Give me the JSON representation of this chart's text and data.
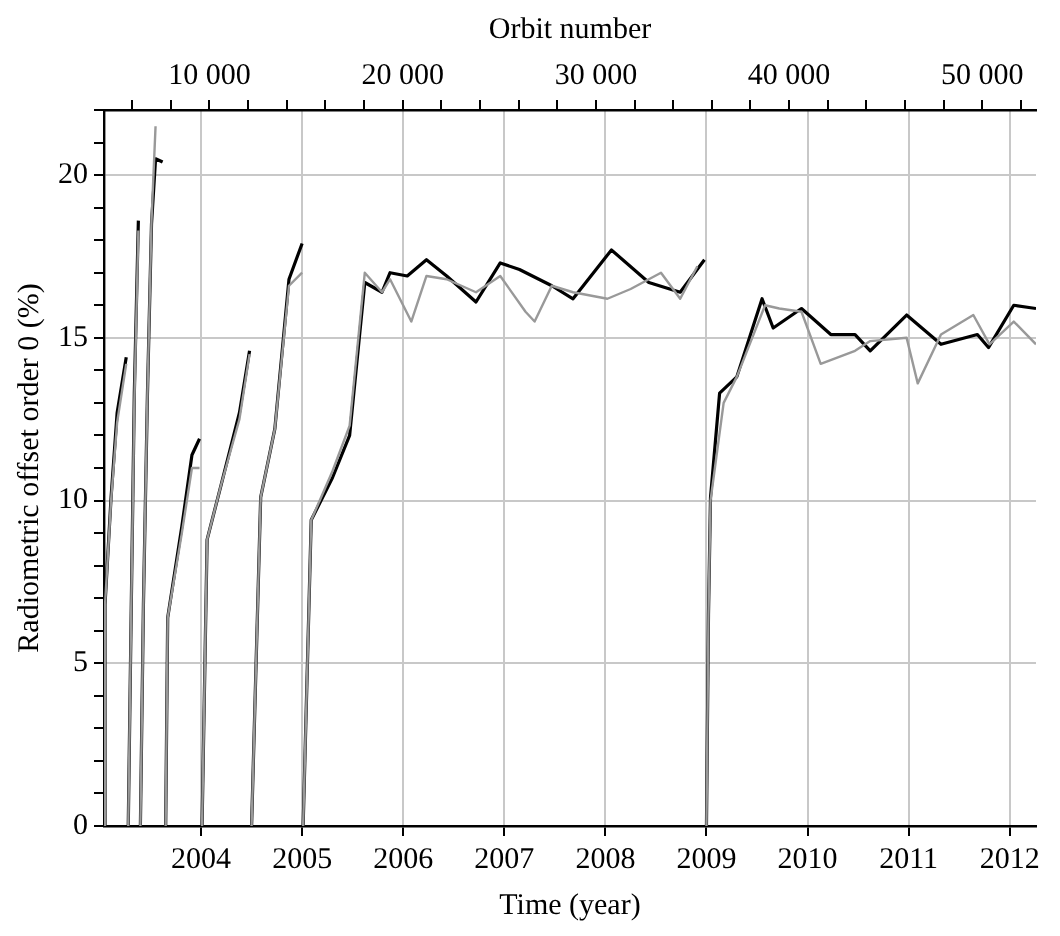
{
  "chart_data": {
    "type": "line",
    "xlabel": "Time (year)",
    "ylabel": "Radiometric offset order 0 (%)",
    "x2label": "Orbit number",
    "xlim": [
      2003.04,
      2012.26
    ],
    "xticks": [
      2004,
      2005,
      2006,
      2007,
      2008,
      2009,
      2010,
      2011,
      2012
    ],
    "x2lim": [
      4540,
      52780
    ],
    "x2ticks": [
      {
        "value": 6000,
        "label": null
      },
      {
        "value": 8000,
        "label": null
      },
      10000,
      {
        "value": 12000,
        "label": null
      },
      {
        "value": 14000,
        "label": null
      },
      {
        "value": 16000,
        "label": null
      },
      {
        "value": 18000,
        "label": null
      },
      20000,
      {
        "value": 22000,
        "label": null
      },
      {
        "value": 24000,
        "label": null
      },
      {
        "value": 26000,
        "label": null
      },
      {
        "value": 28000,
        "label": null
      },
      30000,
      {
        "value": 32000,
        "label": null
      },
      {
        "value": 34000,
        "label": null
      },
      {
        "value": 36000,
        "label": null
      },
      {
        "value": 38000,
        "label": null
      },
      40000,
      {
        "value": 42000,
        "label": null
      },
      {
        "value": 44000,
        "label": null
      },
      {
        "value": 46000,
        "label": null
      },
      {
        "value": 48000,
        "label": null
      },
      50000,
      {
        "value": 52000,
        "label": null
      }
    ],
    "ylim": [
      0,
      22
    ],
    "yticks": [
      0,
      {
        "value": 1,
        "label": null
      },
      {
        "value": 2,
        "label": null
      },
      {
        "value": 3,
        "label": null
      },
      {
        "value": 4,
        "label": null
      },
      5,
      {
        "value": 6,
        "label": null
      },
      {
        "value": 7,
        "label": null
      },
      {
        "value": 8,
        "label": null
      },
      {
        "value": 9,
        "label": null
      },
      10,
      {
        "value": 11,
        "label": null
      },
      {
        "value": 12,
        "label": null
      },
      {
        "value": 13,
        "label": null
      },
      {
        "value": 14,
        "label": null
      },
      15,
      {
        "value": 16,
        "label": null
      },
      {
        "value": 17,
        "label": null
      },
      {
        "value": 18,
        "label": null
      },
      {
        "value": 19,
        "label": null
      },
      20,
      {
        "value": 21,
        "label": null
      },
      {
        "value": 22,
        "label": null
      }
    ],
    "grid": true,
    "legend": false,
    "marker": "none",
    "line_style": "solid",
    "series": [
      {
        "color": "#999999",
        "x": [
          2003.04,
          2003.05,
          2003.11,
          2003.17,
          2003.26,
          2003.27,
          2003.28,
          2003.31,
          2003.34,
          2003.38,
          2003.39,
          2003.4,
          2003.43,
          2003.47,
          2003.51,
          2003.55,
          2003.64,
          2003.65,
          2003.67,
          2003.81,
          2003.91,
          2003.985,
          2004.0,
          2004.01,
          2004.06,
          2004.2,
          2004.38,
          2004.48,
          2004.49,
          2004.5,
          2004.59,
          2004.73,
          2004.87,
          2005.0,
          2005.005,
          2005.01,
          2005.09,
          2005.3,
          2005.47,
          2005.62,
          2005.79,
          2005.87,
          2006.08,
          2006.23,
          2006.43,
          2006.72,
          2006.96,
          2007.21,
          2007.3,
          2007.47,
          2007.68,
          2008.02,
          2008.25,
          2008.55,
          2008.74,
          2008.91,
          2008.99,
          2009.0,
          2009.02,
          2009.04,
          2009.17,
          2009.3,
          2009.58,
          2009.72,
          2009.94,
          2010.13,
          2010.47,
          2010.62,
          2010.98,
          2011.09,
          2011.32,
          2011.64,
          2011.8,
          2012.04,
          2012.26
        ],
        "values": [
          0,
          6.8,
          10.0,
          12.4,
          14.2,
          null,
          0,
          6.8,
          13.0,
          18.3,
          null,
          0,
          6.8,
          13.3,
          18.6,
          21.5,
          null,
          0,
          6.4,
          9.0,
          11.0,
          11.0,
          null,
          0,
          8.8,
          10.5,
          12.5,
          14.5,
          null,
          0,
          10.1,
          12.2,
          16.6,
          17.0,
          null,
          0,
          9.4,
          10.9,
          12.3,
          17.0,
          16.4,
          16.8,
          15.5,
          16.9,
          16.8,
          16.4,
          16.9,
          15.8,
          15.5,
          16.6,
          16.4,
          16.2,
          16.5,
          17.0,
          16.2,
          17.2,
          null,
          0,
          6.5,
          10.0,
          13.0,
          13.8,
          16.0,
          15.9,
          15.8,
          14.2,
          14.6,
          14.9,
          15.0,
          13.6,
          15.1,
          15.7,
          14.8,
          15.5,
          14.8
        ]
      },
      {
        "color": "#000000",
        "x": [
          2003.04,
          2003.05,
          2003.11,
          2003.17,
          2003.26,
          2003.27,
          2003.28,
          2003.31,
          2003.34,
          2003.38,
          2003.39,
          2003.4,
          2003.43,
          2003.47,
          2003.51,
          2003.55,
          2003.62,
          2003.64,
          2003.65,
          2003.67,
          2003.81,
          2003.91,
          2003.985,
          2004.0,
          2004.01,
          2004.06,
          2004.2,
          2004.38,
          2004.48,
          2004.49,
          2004.5,
          2004.59,
          2004.73,
          2004.87,
          2005.0,
          2005.005,
          2005.01,
          2005.09,
          2005.3,
          2005.47,
          2005.62,
          2005.79,
          2005.87,
          2006.04,
          2006.23,
          2006.43,
          2006.72,
          2006.96,
          2007.15,
          2007.47,
          2007.68,
          2008.06,
          2008.43,
          2008.74,
          2008.98,
          2008.99,
          2009.0,
          2009.02,
          2009.04,
          2009.13,
          2009.3,
          2009.55,
          2009.66,
          2009.94,
          2010.23,
          2010.47,
          2010.62,
          2010.98,
          2011.32,
          2011.68,
          2011.79,
          2012.04,
          2012.26
        ],
        "values": [
          0,
          6.8,
          10.1,
          12.7,
          14.4,
          null,
          0,
          6.8,
          13.3,
          18.6,
          null,
          0,
          6.8,
          13.3,
          18.5,
          20.5,
          20.4,
          null,
          0,
          6.4,
          9.2,
          11.4,
          11.9,
          null,
          0,
          8.8,
          10.5,
          12.7,
          14.6,
          null,
          0,
          10.1,
          12.2,
          16.8,
          17.9,
          null,
          0,
          9.4,
          10.7,
          12.0,
          16.7,
          16.4,
          17.0,
          16.9,
          17.4,
          16.9,
          16.1,
          17.3,
          17.1,
          16.6,
          16.2,
          17.7,
          16.7,
          16.4,
          17.4,
          null,
          0,
          6.5,
          10.1,
          13.3,
          13.8,
          16.2,
          15.3,
          15.9,
          15.1,
          15.1,
          14.6,
          15.7,
          14.8,
          15.1,
          14.7,
          16.0,
          15.9
        ]
      }
    ]
  }
}
